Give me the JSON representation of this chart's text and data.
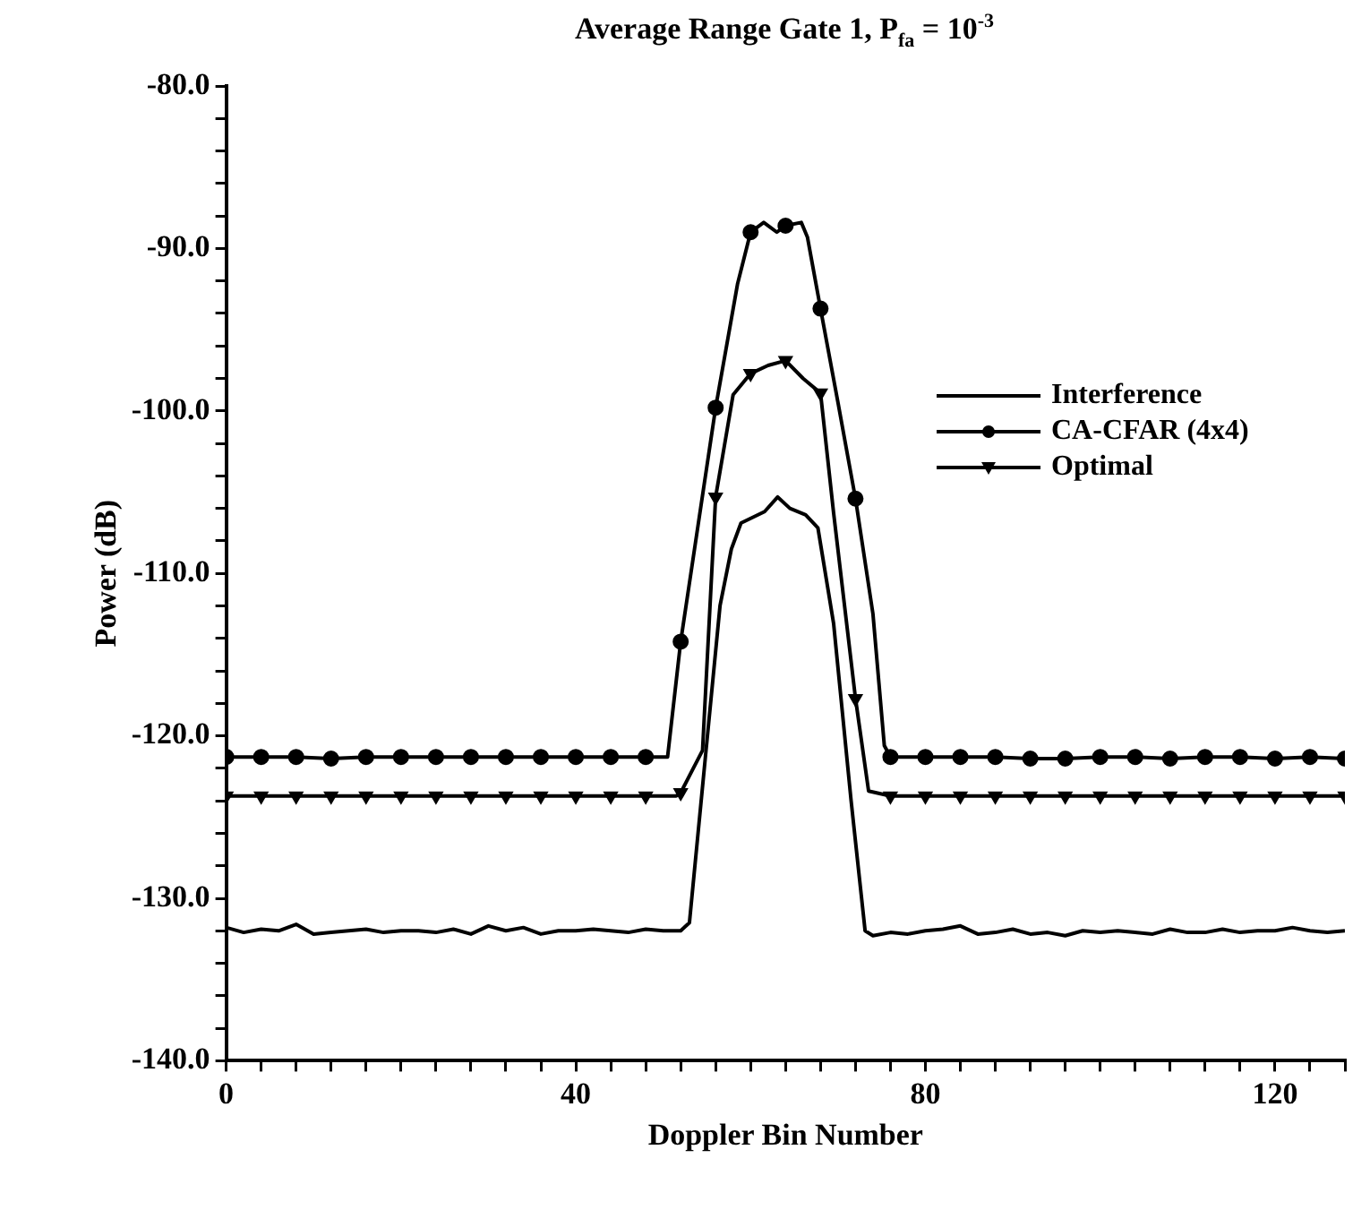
{
  "chart_data": {
    "type": "line",
    "title": "Average Range Gate 1, P$_{fa}$ = 10$^{-3}$",
    "xlabel": "Doppler Bin Number",
    "ylabel": "Power (dB)",
    "xlim": [
      0,
      128
    ],
    "ylim": [
      -140,
      -80
    ],
    "xticks": [
      0,
      {
        "value": 4,
        "label": null
      },
      {
        "value": 8,
        "label": null
      },
      {
        "value": 12,
        "label": null
      },
      {
        "value": 16,
        "label": null
      },
      {
        "value": 20,
        "label": null
      },
      {
        "value": 24,
        "label": null
      },
      {
        "value": 28,
        "label": null
      },
      {
        "value": 32,
        "label": null
      },
      {
        "value": 36,
        "label": null
      },
      40,
      {
        "value": 44,
        "label": null
      },
      {
        "value": 48,
        "label": null
      },
      {
        "value": 52,
        "label": null
      },
      {
        "value": 56,
        "label": null
      },
      {
        "value": 60,
        "label": null
      },
      {
        "value": 64,
        "label": null
      },
      {
        "value": 68,
        "label": null
      },
      {
        "value": 72,
        "label": null
      },
      {
        "value": 76,
        "label": null
      },
      80,
      {
        "value": 84,
        "label": null
      },
      {
        "value": 88,
        "label": null
      },
      {
        "value": 92,
        "label": null
      },
      {
        "value": 96,
        "label": null
      },
      {
        "value": 100,
        "label": null
      },
      {
        "value": 104,
        "label": null
      },
      {
        "value": 108,
        "label": null
      },
      {
        "value": 112,
        "label": null
      },
      {
        "value": 116,
        "label": null
      },
      120,
      {
        "value": 124,
        "label": null
      },
      {
        "value": 128,
        "label": null
      }
    ],
    "yticks": [
      {
        "value": -140,
        "label": "-140.0"
      },
      {
        "value": -138,
        "label": null
      },
      {
        "value": -136,
        "label": null
      },
      {
        "value": -134,
        "label": null
      },
      {
        "value": -132,
        "label": null
      },
      {
        "value": -130,
        "label": "-130.0"
      },
      {
        "value": -128,
        "label": null
      },
      {
        "value": -126,
        "label": null
      },
      {
        "value": -124,
        "label": null
      },
      {
        "value": -122,
        "label": null
      },
      {
        "value": -120,
        "label": "-120.0"
      },
      {
        "value": -118,
        "label": null
      },
      {
        "value": -116,
        "label": null
      },
      {
        "value": -114,
        "label": null
      },
      {
        "value": -112,
        "label": null
      },
      {
        "value": -110,
        "label": "-110.0"
      },
      {
        "value": -108,
        "label": null
      },
      {
        "value": -106,
        "label": null
      },
      {
        "value": -104,
        "label": null
      },
      {
        "value": -102,
        "label": null
      },
      {
        "value": -100,
        "label": "-100.0"
      },
      {
        "value": -98,
        "label": null
      },
      {
        "value": -96,
        "label": null
      },
      {
        "value": -94,
        "label": null
      },
      {
        "value": -92,
        "label": null
      },
      {
        "value": -90,
        "label": "-90.0"
      },
      {
        "value": -88,
        "label": null
      },
      {
        "value": -86,
        "label": null
      },
      {
        "value": -84,
        "label": null
      },
      {
        "value": -82,
        "label": null
      },
      {
        "value": -80,
        "label": "-80.0"
      }
    ],
    "grid": false,
    "legend": "right",
    "line_style": "solid",
    "series": [
      {
        "name": "Interference",
        "color": "#000000",
        "marker": "none",
        "x": [
          0,
          2,
          4,
          6,
          8,
          10,
          12,
          14,
          16,
          18,
          20,
          22,
          24,
          26,
          28,
          30,
          32,
          34,
          36,
          38,
          40,
          42,
          44,
          46,
          48,
          50,
          52,
          53,
          54.9,
          56.5,
          57.8,
          58.9,
          61.6,
          63.1,
          64.5,
          66.3,
          67.7,
          69.5,
          71.5,
          73.1,
          74,
          76,
          78,
          80,
          82,
          84,
          86,
          88,
          90,
          92,
          94,
          96,
          98,
          100,
          102,
          104,
          106,
          108,
          110,
          112,
          114,
          116,
          118,
          120,
          122,
          124,
          126,
          128
        ],
        "values": [
          -131.8,
          -132.1,
          -131.9,
          -132,
          -131.6,
          -132.2,
          -132.1,
          -132,
          -131.9,
          -132.1,
          -132,
          -132,
          -132.1,
          -131.9,
          -132.2,
          -131.7,
          -132,
          -131.8,
          -132.2,
          -132,
          -132,
          -131.9,
          -132,
          -132.1,
          -131.9,
          -132,
          -132,
          -131.5,
          -120.9,
          -112,
          -108.5,
          -106.9,
          -106.2,
          -105.3,
          -106,
          -106.4,
          -107.2,
          -113.1,
          -124,
          -132,
          -132.3,
          -132.1,
          -132.2,
          -132,
          -131.9,
          -131.7,
          -132.2,
          -132.1,
          -131.9,
          -132.2,
          -132.1,
          -132.3,
          -132,
          -132.1,
          -132,
          -132.1,
          -132.2,
          -131.9,
          -132.1,
          -132.1,
          -131.9,
          -132.1,
          -132,
          -132,
          -131.8,
          -132,
          -132.1,
          -132
        ]
      },
      {
        "name": "CA-CFAR (4x4)",
        "color": "#000000",
        "marker": "circle",
        "x": [
          0,
          4,
          8,
          12,
          16,
          20,
          24,
          28,
          32,
          36,
          40,
          44,
          48,
          50.5,
          52,
          54,
          56,
          58.5,
          60,
          61.5,
          63,
          64,
          65.8,
          66.5,
          68,
          70,
          72,
          74,
          75.3,
          76,
          80,
          84,
          88,
          92,
          96,
          100,
          104,
          108,
          112,
          116,
          120,
          124,
          128
        ],
        "values": [
          -121.3,
          -121.3,
          -121.3,
          -121.4,
          -121.3,
          -121.3,
          -121.3,
          -121.3,
          -121.3,
          -121.3,
          -121.3,
          -121.3,
          -121.3,
          -121.3,
          -114.2,
          -107,
          -99.8,
          -92.2,
          -89,
          -88.4,
          -89,
          -88.6,
          -88.4,
          -89.3,
          -93.7,
          -99.5,
          -105.4,
          -112.5,
          -120.6,
          -121.3,
          -121.3,
          -121.3,
          -121.3,
          -121.4,
          -121.4,
          -121.3,
          -121.3,
          -121.4,
          -121.3,
          -121.3,
          -121.4,
          -121.3,
          -121.4
        ]
      },
      {
        "name": "Optimal",
        "color": "#000000",
        "marker": "triangle",
        "x": [
          0,
          4,
          8,
          12,
          16,
          20,
          24,
          28,
          32,
          36,
          40,
          44,
          48,
          51.5,
          52,
          54.5,
          56,
          58,
          60,
          62,
          64,
          66,
          68,
          69.5,
          72,
          73.5,
          76,
          80,
          84,
          88,
          92,
          96,
          100,
          104,
          108,
          112,
          116,
          120,
          124,
          128
        ],
        "values": [
          -123.7,
          -123.7,
          -123.7,
          -123.7,
          -123.7,
          -123.7,
          -123.7,
          -123.7,
          -123.7,
          -123.7,
          -123.7,
          -123.7,
          -123.7,
          -123.7,
          -123.5,
          -120.9,
          -105.3,
          -99,
          -97.7,
          -97.2,
          -96.9,
          -98,
          -98.9,
          -106.3,
          -117.7,
          -123.4,
          -123.7,
          -123.7,
          -123.7,
          -123.7,
          -123.7,
          -123.7,
          -123.7,
          -123.7,
          -123.7,
          -123.7,
          -123.7,
          -123.7,
          -123.7,
          -123.7
        ]
      }
    ]
  }
}
